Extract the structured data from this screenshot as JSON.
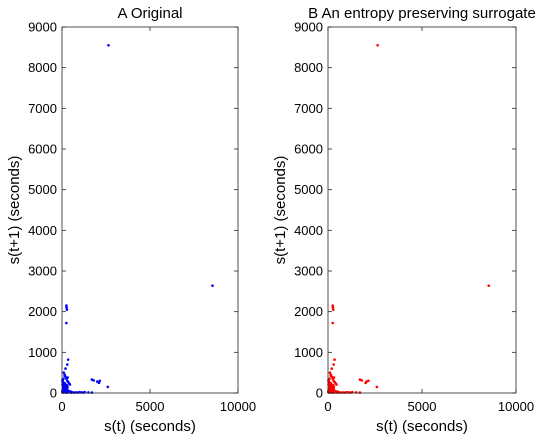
{
  "chart_data": [
    {
      "type": "scatter",
      "title": "A Original",
      "xlabel": "s(t) (seconds)",
      "ylabel": "s(t+1) (seconds)",
      "xlim": [
        0,
        10000
      ],
      "ylim": [
        0,
        9000
      ],
      "xticks": [
        "0",
        "5000",
        "10000"
      ],
      "yticks": [
        "0",
        "1000",
        "2000",
        "3000",
        "4000",
        "5000",
        "6000",
        "7000",
        "8000",
        "9000"
      ],
      "grid": false,
      "color": "#0000ff",
      "series": [
        {
          "x": [
            20,
            35,
            50,
            65,
            80,
            95,
            110,
            125,
            140,
            155,
            170,
            185,
            200,
            215,
            230,
            245,
            260,
            280,
            300,
            320,
            30,
            45,
            60,
            75,
            90,
            105,
            120,
            135,
            150,
            165,
            180,
            195,
            210,
            225,
            240,
            255,
            270,
            290,
            310,
            330,
            40,
            55,
            70,
            85,
            100,
            115,
            130,
            145,
            160,
            175,
            190,
            205,
            220,
            235,
            250,
            265,
            280,
            295,
            25,
            310,
            25,
            40,
            60,
            80,
            100,
            130,
            160,
            190,
            220,
            260,
            300,
            25,
            35,
            50,
            70,
            90,
            120,
            150,
            180,
            210,
            250,
            290,
            340,
            380,
            420,
            470,
            520,
            560,
            600,
            700,
            800,
            900,
            1000,
            1100,
            1200,
            1300,
            1500,
            1700,
            30,
            60,
            90,
            120,
            150,
            180,
            210,
            240,
            270,
            300,
            400,
            500,
            100,
            150,
            200,
            250,
            300,
            350,
            400,
            450,
            8550,
            2640,
            250,
            2100,
            2150,
            1700,
            2000,
            1800,
            2600,
            350,
            300,
            280,
            250,
            200,
            80,
            150,
            320,
            260
          ],
          "y": [
            30,
            60,
            90,
            20,
            110,
            45,
            150,
            80,
            35,
            170,
            65,
            100,
            25,
            130,
            55,
            190,
            40,
            85,
            120,
            15,
            210,
            50,
            75,
            160,
            95,
            30,
            140,
            70,
            240,
            45,
            105,
            180,
            60,
            20,
            125,
            90,
            35,
            155,
            70,
            40,
            260,
            85,
            40,
            115,
            200,
            55,
            25,
            170,
            95,
            230,
            60,
            135,
            45,
            110,
            80,
            30,
            190,
            65,
            300,
            150,
            20,
            15,
            25,
            10,
            30,
            20,
            15,
            25,
            10,
            20,
            15,
            40,
            55,
            70,
            85,
            95,
            60,
            45,
            35,
            25,
            20,
            15,
            25,
            30,
            20,
            15,
            10,
            20,
            15,
            10,
            15,
            10,
            20,
            15,
            10,
            20,
            15,
            10,
            320,
            280,
            240,
            200,
            170,
            140,
            115,
            95,
            75,
            60,
            45,
            35,
            500,
            450,
            400,
            350,
            300,
            270,
            240,
            210,
            2640,
            8550,
            2150,
            250,
            300,
            330,
            280,
            310,
            150,
            820,
            700,
            2050,
            1720,
            600,
            350,
            420,
            380,
            2100
          ]
        }
      ]
    },
    {
      "type": "scatter",
      "title": "B An entropy preserving surrogate",
      "xlabel": "s(t) (seconds)",
      "ylabel": "s(t+1) (seconds)",
      "xlim": [
        0,
        10000
      ],
      "ylim": [
        0,
        9000
      ],
      "xticks": [
        "0",
        "5000",
        "10000"
      ],
      "yticks": [
        "0",
        "1000",
        "2000",
        "3000",
        "4000",
        "5000",
        "6000",
        "7000",
        "8000",
        "9000"
      ],
      "grid": false,
      "color": "#ff0000",
      "series": [
        {
          "x": [
            20,
            35,
            50,
            65,
            80,
            95,
            110,
            125,
            140,
            155,
            170,
            185,
            200,
            215,
            230,
            245,
            260,
            280,
            300,
            320,
            30,
            45,
            60,
            75,
            90,
            105,
            120,
            135,
            150,
            165,
            180,
            195,
            210,
            225,
            240,
            255,
            270,
            290,
            310,
            330,
            40,
            55,
            70,
            85,
            100,
            115,
            130,
            145,
            160,
            175,
            190,
            205,
            220,
            235,
            250,
            265,
            280,
            295,
            25,
            310,
            25,
            40,
            60,
            80,
            100,
            130,
            160,
            190,
            220,
            260,
            300,
            25,
            35,
            50,
            70,
            90,
            120,
            150,
            180,
            210,
            250,
            290,
            340,
            380,
            420,
            470,
            520,
            560,
            600,
            700,
            800,
            900,
            1000,
            1100,
            1200,
            1300,
            1500,
            1700,
            30,
            60,
            90,
            120,
            150,
            180,
            210,
            240,
            270,
            300,
            400,
            500,
            100,
            150,
            200,
            250,
            300,
            350,
            400,
            450,
            8550,
            2640,
            250,
            2000,
            2150,
            1700,
            2050,
            1800,
            2600,
            350,
            300,
            280,
            250,
            200,
            80,
            150,
            320,
            260
          ],
          "y": [
            30,
            60,
            90,
            20,
            110,
            45,
            150,
            80,
            35,
            170,
            65,
            100,
            25,
            130,
            55,
            190,
            40,
            85,
            120,
            15,
            210,
            50,
            75,
            160,
            95,
            30,
            140,
            70,
            240,
            45,
            105,
            180,
            60,
            20,
            125,
            90,
            35,
            155,
            70,
            40,
            260,
            85,
            40,
            115,
            200,
            55,
            25,
            170,
            95,
            230,
            60,
            135,
            45,
            110,
            80,
            30,
            190,
            65,
            300,
            150,
            20,
            15,
            25,
            10,
            30,
            20,
            15,
            25,
            10,
            20,
            15,
            40,
            55,
            70,
            85,
            95,
            60,
            45,
            35,
            25,
            20,
            15,
            25,
            30,
            20,
            15,
            10,
            20,
            15,
            10,
            15,
            10,
            20,
            15,
            10,
            20,
            15,
            10,
            320,
            280,
            240,
            200,
            170,
            140,
            115,
            95,
            75,
            60,
            45,
            35,
            500,
            450,
            400,
            350,
            300,
            270,
            240,
            210,
            2640,
            8550,
            2150,
            250,
            300,
            330,
            280,
            310,
            150,
            820,
            700,
            2050,
            1720,
            600,
            350,
            420,
            380,
            2100
          ]
        }
      ]
    }
  ]
}
